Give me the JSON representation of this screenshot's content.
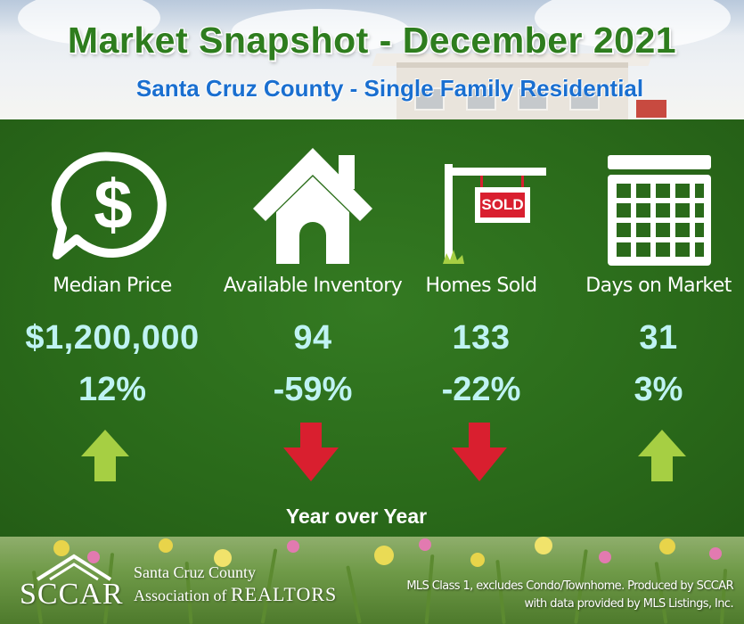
{
  "header": {
    "title": "Market Snapshot - December 2021",
    "subtitle": "Santa Cruz County - Single Family Residential"
  },
  "metrics": [
    {
      "label": "Median Price",
      "value": "$1,200,000",
      "change": "12%",
      "direction": "up",
      "icon": "dollar-speech-bubble-icon"
    },
    {
      "label": "Available Inventory",
      "value": "94",
      "change": "-59%",
      "direction": "down",
      "icon": "house-icon"
    },
    {
      "label": "Homes Sold",
      "value": "133",
      "change": "-22%",
      "direction": "down",
      "icon": "sold-sign-icon"
    },
    {
      "label": "Days on Market",
      "value": "31",
      "change": "3%",
      "direction": "up",
      "icon": "calendar-icon"
    }
  ],
  "yoy_label": "Year over Year",
  "sold_sign_text": "SOLD",
  "footer": {
    "logo": "SCCAR",
    "association_line1": "Santa Cruz County",
    "association_line2_prefix": "Association of",
    "association_line2_suffix": "REALTORS",
    "credit_line1": "MLS Class 1, excludes Condo/Townhome. Produced by SCCAR",
    "credit_line2": "with data provided by MLS Listings, Inc."
  },
  "colors": {
    "panel_green": "#2a6a1a",
    "title_green": "#2e7d1e",
    "subtitle_blue": "#1a6fd0",
    "value_cyan": "#bff3f3",
    "up_arrow": "#a6cf43",
    "down_arrow": "#d91f2f"
  }
}
